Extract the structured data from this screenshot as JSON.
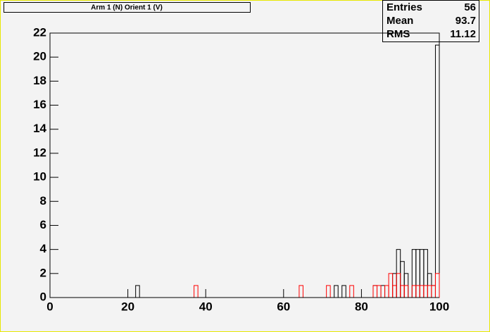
{
  "chart_data": {
    "type": "histogram",
    "title": "Arm 1 (N) Orient 1 (V)",
    "bins": [
      0,
      1,
      2,
      3,
      4,
      5,
      6,
      7,
      8,
      9,
      10,
      11,
      12,
      13,
      14,
      15,
      16,
      17,
      18,
      19,
      20,
      21,
      22,
      23,
      24,
      25,
      26,
      27,
      28,
      29,
      30,
      31,
      32,
      33,
      34,
      35,
      36,
      37,
      38,
      39,
      40,
      41,
      42,
      43,
      44,
      45,
      46,
      47,
      48,
      49,
      50,
      51,
      52,
      53,
      54,
      55,
      56,
      57,
      58,
      59,
      60,
      61,
      62,
      63,
      64,
      65,
      66,
      67,
      68,
      69,
      70,
      71,
      72,
      73,
      74,
      75,
      76,
      77,
      78,
      79,
      80,
      81,
      82,
      83,
      84,
      85,
      86,
      87,
      88,
      89,
      90,
      91,
      92,
      93,
      94,
      95,
      96,
      97,
      98,
      99,
      100
    ],
    "series": [
      {
        "color": "#000000",
        "values": [
          0,
          0,
          0,
          0,
          0,
          0,
          0,
          0,
          0,
          0,
          0,
          0,
          0,
          0,
          0,
          0,
          0,
          0,
          0,
          0,
          0,
          0,
          1,
          0,
          0,
          0,
          0,
          0,
          0,
          0,
          0,
          0,
          0,
          0,
          0,
          0,
          0,
          0,
          0,
          0,
          0,
          0,
          0,
          0,
          0,
          0,
          0,
          0,
          0,
          0,
          0,
          0,
          0,
          0,
          0,
          0,
          0,
          0,
          0,
          0,
          0,
          0,
          0,
          0,
          0,
          0,
          0,
          0,
          0,
          0,
          0,
          0,
          0,
          1,
          0,
          1,
          0,
          0,
          0,
          0,
          0,
          0,
          0,
          1,
          0,
          1,
          0,
          0,
          2,
          4,
          3,
          2,
          0,
          4,
          4,
          4,
          4,
          2,
          1,
          21
        ]
      },
      {
        "color": "#ff0000",
        "values": [
          0,
          0,
          0,
          0,
          0,
          0,
          0,
          0,
          0,
          0,
          0,
          0,
          0,
          0,
          0,
          0,
          0,
          0,
          0,
          0,
          0,
          0,
          0,
          0,
          0,
          0,
          0,
          0,
          0,
          0,
          0,
          0,
          0,
          0,
          0,
          0,
          0,
          1,
          0,
          0,
          0,
          0,
          0,
          0,
          0,
          0,
          0,
          0,
          0,
          0,
          0,
          0,
          0,
          0,
          0,
          0,
          0,
          0,
          0,
          0,
          0,
          0,
          0,
          0,
          1,
          0,
          0,
          0,
          0,
          0,
          0,
          1,
          0,
          0,
          0,
          0,
          0,
          1,
          0,
          0,
          0,
          0,
          0,
          1,
          1,
          0,
          1,
          2,
          1,
          2,
          1,
          1,
          0,
          1,
          1,
          1,
          1,
          1,
          1,
          2
        ]
      }
    ],
    "xlim": [
      0,
      100
    ],
    "xticks": [
      0,
      20,
      40,
      60,
      80,
      100
    ],
    "ylim": [
      0,
      22
    ],
    "yticks": [
      0,
      2,
      4,
      6,
      8,
      10,
      12,
      14,
      16,
      18,
      20,
      22
    ],
    "stats": [
      {
        "label": "Entries",
        "value": 56
      },
      {
        "label": "Mean",
        "value": 93.7
      },
      {
        "label": "RMS",
        "value": 11.12
      }
    ]
  }
}
